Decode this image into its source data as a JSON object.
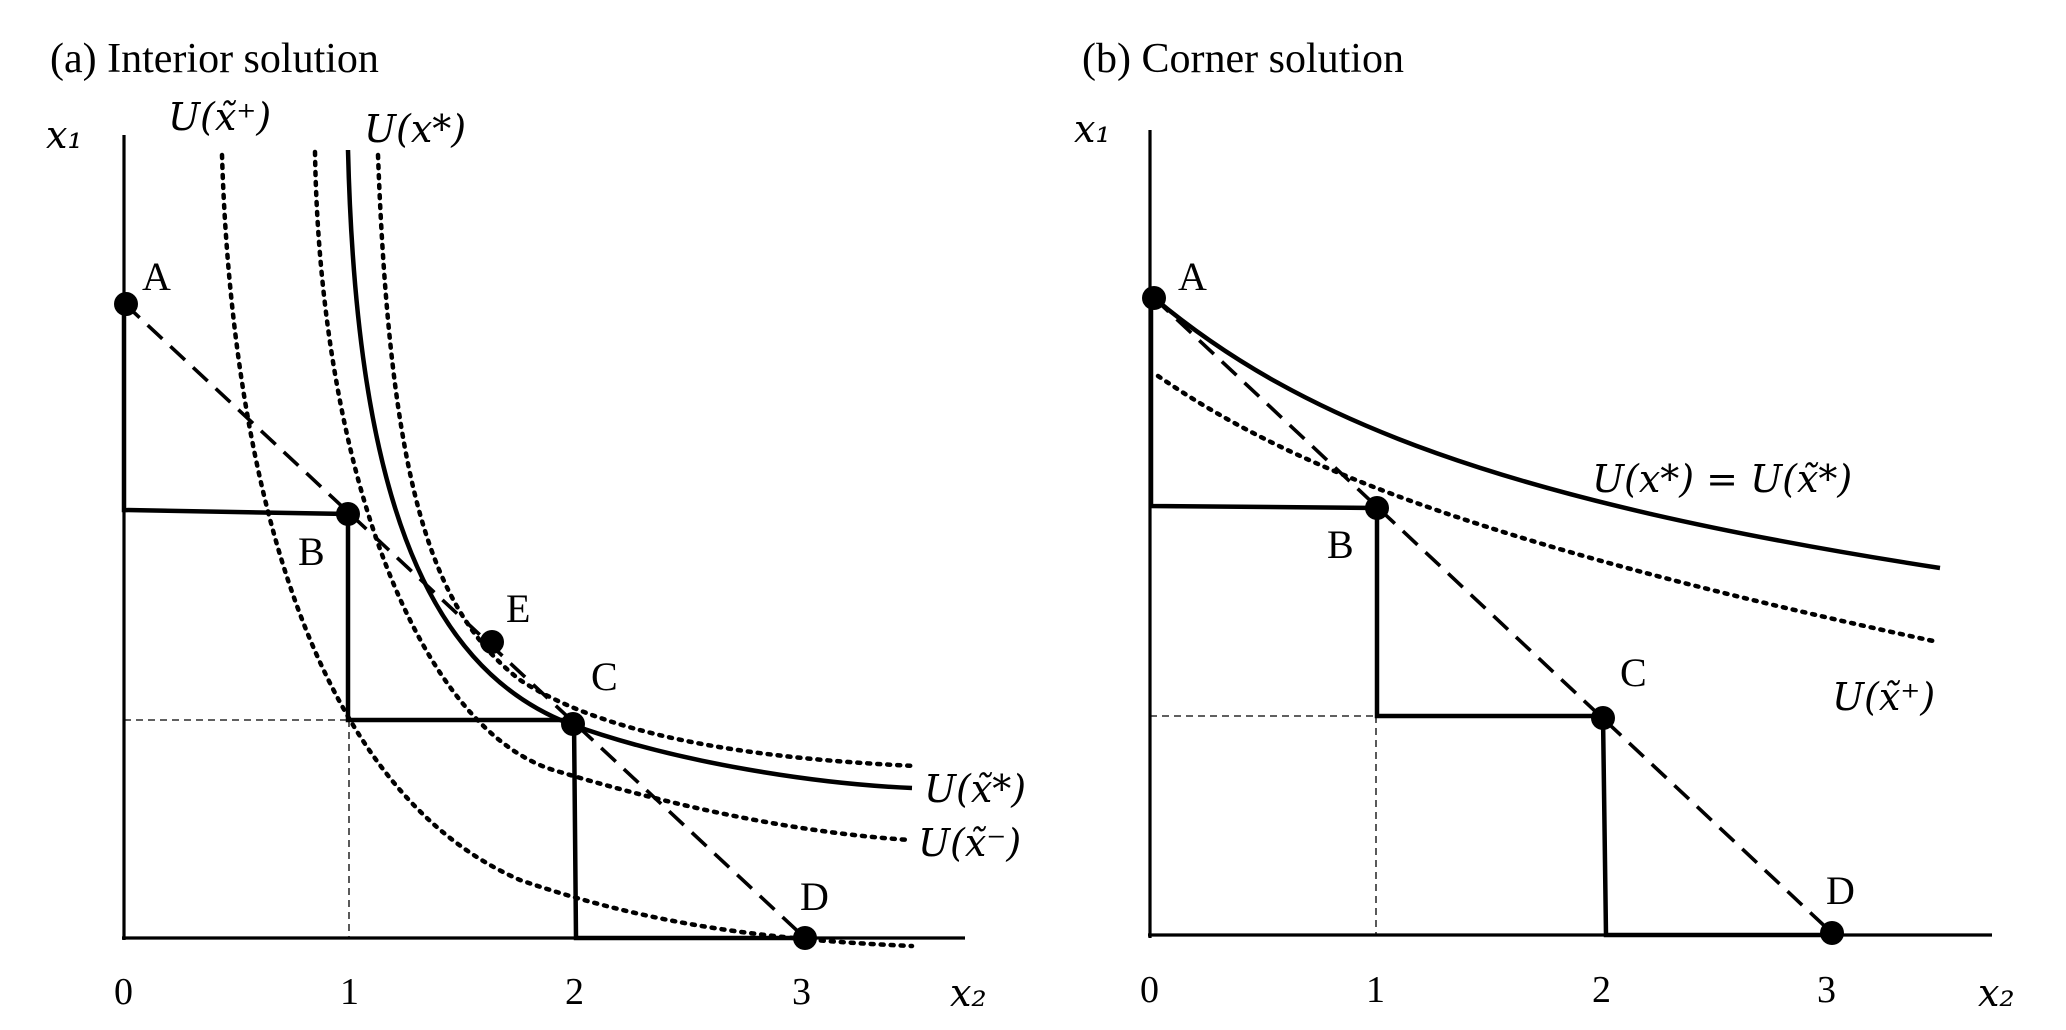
{
  "panel_a": {
    "title": "(a) Interior solution",
    "y_axis_label": "x₁",
    "x_axis_label": "x₂",
    "x_ticks": [
      "0",
      "1",
      "2",
      "3"
    ],
    "points": {
      "A": "A",
      "B": "B",
      "C": "C",
      "D": "D",
      "E": "E"
    },
    "curve_labels": {
      "u_tilde_plus": "U(x̃⁺)",
      "u_star": "U(x*)",
      "u_tilde_star": "U(x̃*)",
      "u_tilde_minus": "U(x̃⁻)"
    }
  },
  "panel_b": {
    "title": "(b) Corner solution",
    "y_axis_label": "x₁",
    "x_axis_label": "x₂",
    "x_ticks": [
      "0",
      "1",
      "2",
      "3"
    ],
    "points": {
      "A": "A",
      "B": "B",
      "C": "C",
      "D": "D"
    },
    "curve_labels": {
      "u_star_equal": "U(x*) = U(x̃*)",
      "u_tilde_plus": "U(x̃⁺)"
    }
  }
}
